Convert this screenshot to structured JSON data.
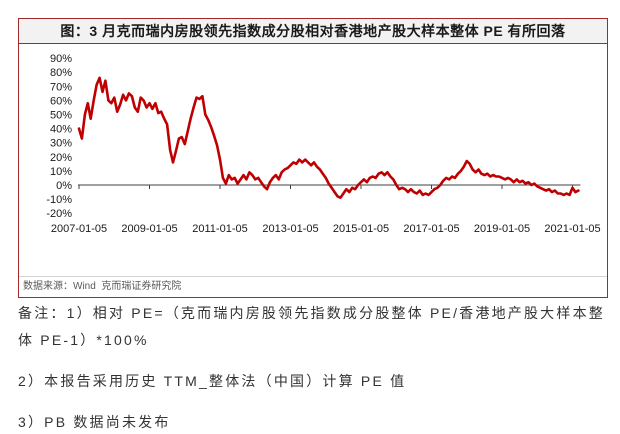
{
  "source": "数据来源：Wind  克而瑞证券研究院",
  "notes": {
    "line1": "备注：1）相对 PE=（克而瑞内房股领先指数成分股整体 PE/香港地产股大样本整",
    "line2": "体 PE-1）*100%",
    "line3": "2）本报告采用历史 TTM_整体法（中国）计算 PE 值",
    "line4": "3）PB 数据尚未发布"
  },
  "colors": {
    "line": "#c00000",
    "frame": "#a32a2a",
    "title_band": "#f2f2f2"
  },
  "chart_data": {
    "type": "line",
    "title": "图：3 月克而瑞内房股领先指数成分股相对香港地产股大样本整体 PE 有所回落",
    "ylim": [
      -20,
      90
    ],
    "grid": false,
    "legend": "none",
    "y_tick_labels": [
      "90%",
      "80%",
      "70%",
      "60%",
      "50%",
      "40%",
      "30%",
      "20%",
      "10%",
      "0%",
      "-10%",
      "-20%"
    ],
    "x_tick_labels": [
      "2007-01-05",
      "2009-01-05",
      "2011-01-05",
      "2013-01-05",
      "2015-01-05",
      "2017-01-05",
      "2019-01-05",
      "2021-01-05"
    ],
    "x": [
      "2007-01",
      "2007-02",
      "2007-03",
      "2007-04",
      "2007-05",
      "2007-06",
      "2007-07",
      "2007-08",
      "2007-09",
      "2007-10",
      "2007-11",
      "2007-12",
      "2008-01",
      "2008-02",
      "2008-03",
      "2008-04",
      "2008-05",
      "2008-06",
      "2008-07",
      "2008-08",
      "2008-09",
      "2008-10",
      "2008-11",
      "2008-12",
      "2009-01",
      "2009-02",
      "2009-03",
      "2009-04",
      "2009-05",
      "2009-06",
      "2009-07",
      "2009-08",
      "2009-09",
      "2009-10",
      "2009-11",
      "2009-12",
      "2010-01",
      "2010-02",
      "2010-03",
      "2010-04",
      "2010-05",
      "2010-06",
      "2010-07",
      "2010-08",
      "2010-09",
      "2010-10",
      "2010-11",
      "2010-12",
      "2011-01",
      "2011-02",
      "2011-03",
      "2011-04",
      "2011-05",
      "2011-06",
      "2011-07",
      "2011-08",
      "2011-09",
      "2011-10",
      "2011-11",
      "2011-12",
      "2012-01",
      "2012-02",
      "2012-03",
      "2012-04",
      "2012-05",
      "2012-06",
      "2012-07",
      "2012-08",
      "2012-09",
      "2012-10",
      "2012-11",
      "2012-12",
      "2013-01",
      "2013-02",
      "2013-03",
      "2013-04",
      "2013-05",
      "2013-06",
      "2013-07",
      "2013-08",
      "2013-09",
      "2013-10",
      "2013-11",
      "2013-12",
      "2014-01",
      "2014-02",
      "2014-03",
      "2014-04",
      "2014-05",
      "2014-06",
      "2014-07",
      "2014-08",
      "2014-09",
      "2014-10",
      "2014-11",
      "2014-12",
      "2015-01",
      "2015-02",
      "2015-03",
      "2015-04",
      "2015-05",
      "2015-06",
      "2015-07",
      "2015-08",
      "2015-09",
      "2015-10",
      "2015-11",
      "2015-12",
      "2016-01",
      "2016-02",
      "2016-03",
      "2016-04",
      "2016-05",
      "2016-06",
      "2016-07",
      "2016-08",
      "2016-09",
      "2016-10",
      "2016-11",
      "2016-12",
      "2017-01",
      "2017-02",
      "2017-03",
      "2017-04",
      "2017-05",
      "2017-06",
      "2017-07",
      "2017-08",
      "2017-09",
      "2017-10",
      "2017-11",
      "2017-12",
      "2018-01",
      "2018-02",
      "2018-03",
      "2018-04",
      "2018-05",
      "2018-06",
      "2018-07",
      "2018-08",
      "2018-09",
      "2018-10",
      "2018-11",
      "2018-12",
      "2019-01",
      "2019-02",
      "2019-03",
      "2019-04",
      "2019-05",
      "2019-06",
      "2019-07",
      "2019-08",
      "2019-09",
      "2019-10",
      "2019-11",
      "2019-12",
      "2020-01",
      "2020-02",
      "2020-03",
      "2020-04",
      "2020-05",
      "2020-06",
      "2020-07",
      "2020-08",
      "2020-09",
      "2020-10",
      "2020-11",
      "2020-12",
      "2021-01",
      "2021-02",
      "2021-03"
    ],
    "series": [
      {
        "values": [
          40,
          33,
          50,
          58,
          47,
          60,
          71,
          76,
          66,
          74,
          60,
          58,
          62,
          52,
          57,
          64,
          60,
          65,
          63,
          55,
          52,
          62,
          60,
          55,
          58,
          54,
          58,
          51,
          52,
          47,
          43,
          25,
          16,
          24,
          33,
          34,
          29,
          38,
          47,
          55,
          62,
          61,
          63,
          50,
          46,
          41,
          35,
          28,
          18,
          5,
          1,
          7,
          4,
          5,
          1,
          4,
          7,
          4,
          9,
          7,
          4,
          5,
          2,
          -1,
          -3,
          2,
          5,
          7,
          4,
          9,
          11,
          12,
          14,
          16,
          15,
          18,
          16,
          18,
          16,
          14,
          16,
          13,
          11,
          8,
          5,
          1,
          -2,
          -5,
          -8,
          -9,
          -6,
          -3,
          -5,
          -2,
          -3,
          0,
          2,
          4,
          2,
          5,
          6,
          5,
          8,
          9,
          7,
          9,
          6,
          4,
          0,
          -3,
          -2,
          -3,
          -5,
          -3,
          -5,
          -6,
          -4,
          -7,
          -6,
          -7,
          -5,
          -3,
          -2,
          0,
          3,
          5,
          4,
          6,
          5,
          8,
          10,
          13,
          17,
          15,
          11,
          9,
          11,
          8,
          7,
          8,
          6,
          7,
          6,
          6,
          5,
          4,
          5,
          4,
          2,
          4,
          2,
          3,
          1,
          2,
          0,
          1,
          -1,
          -2,
          -3,
          -4,
          -3,
          -5,
          -4,
          -6,
          -6,
          -7,
          -6,
          -7,
          -2,
          -5,
          -4
        ]
      }
    ]
  }
}
